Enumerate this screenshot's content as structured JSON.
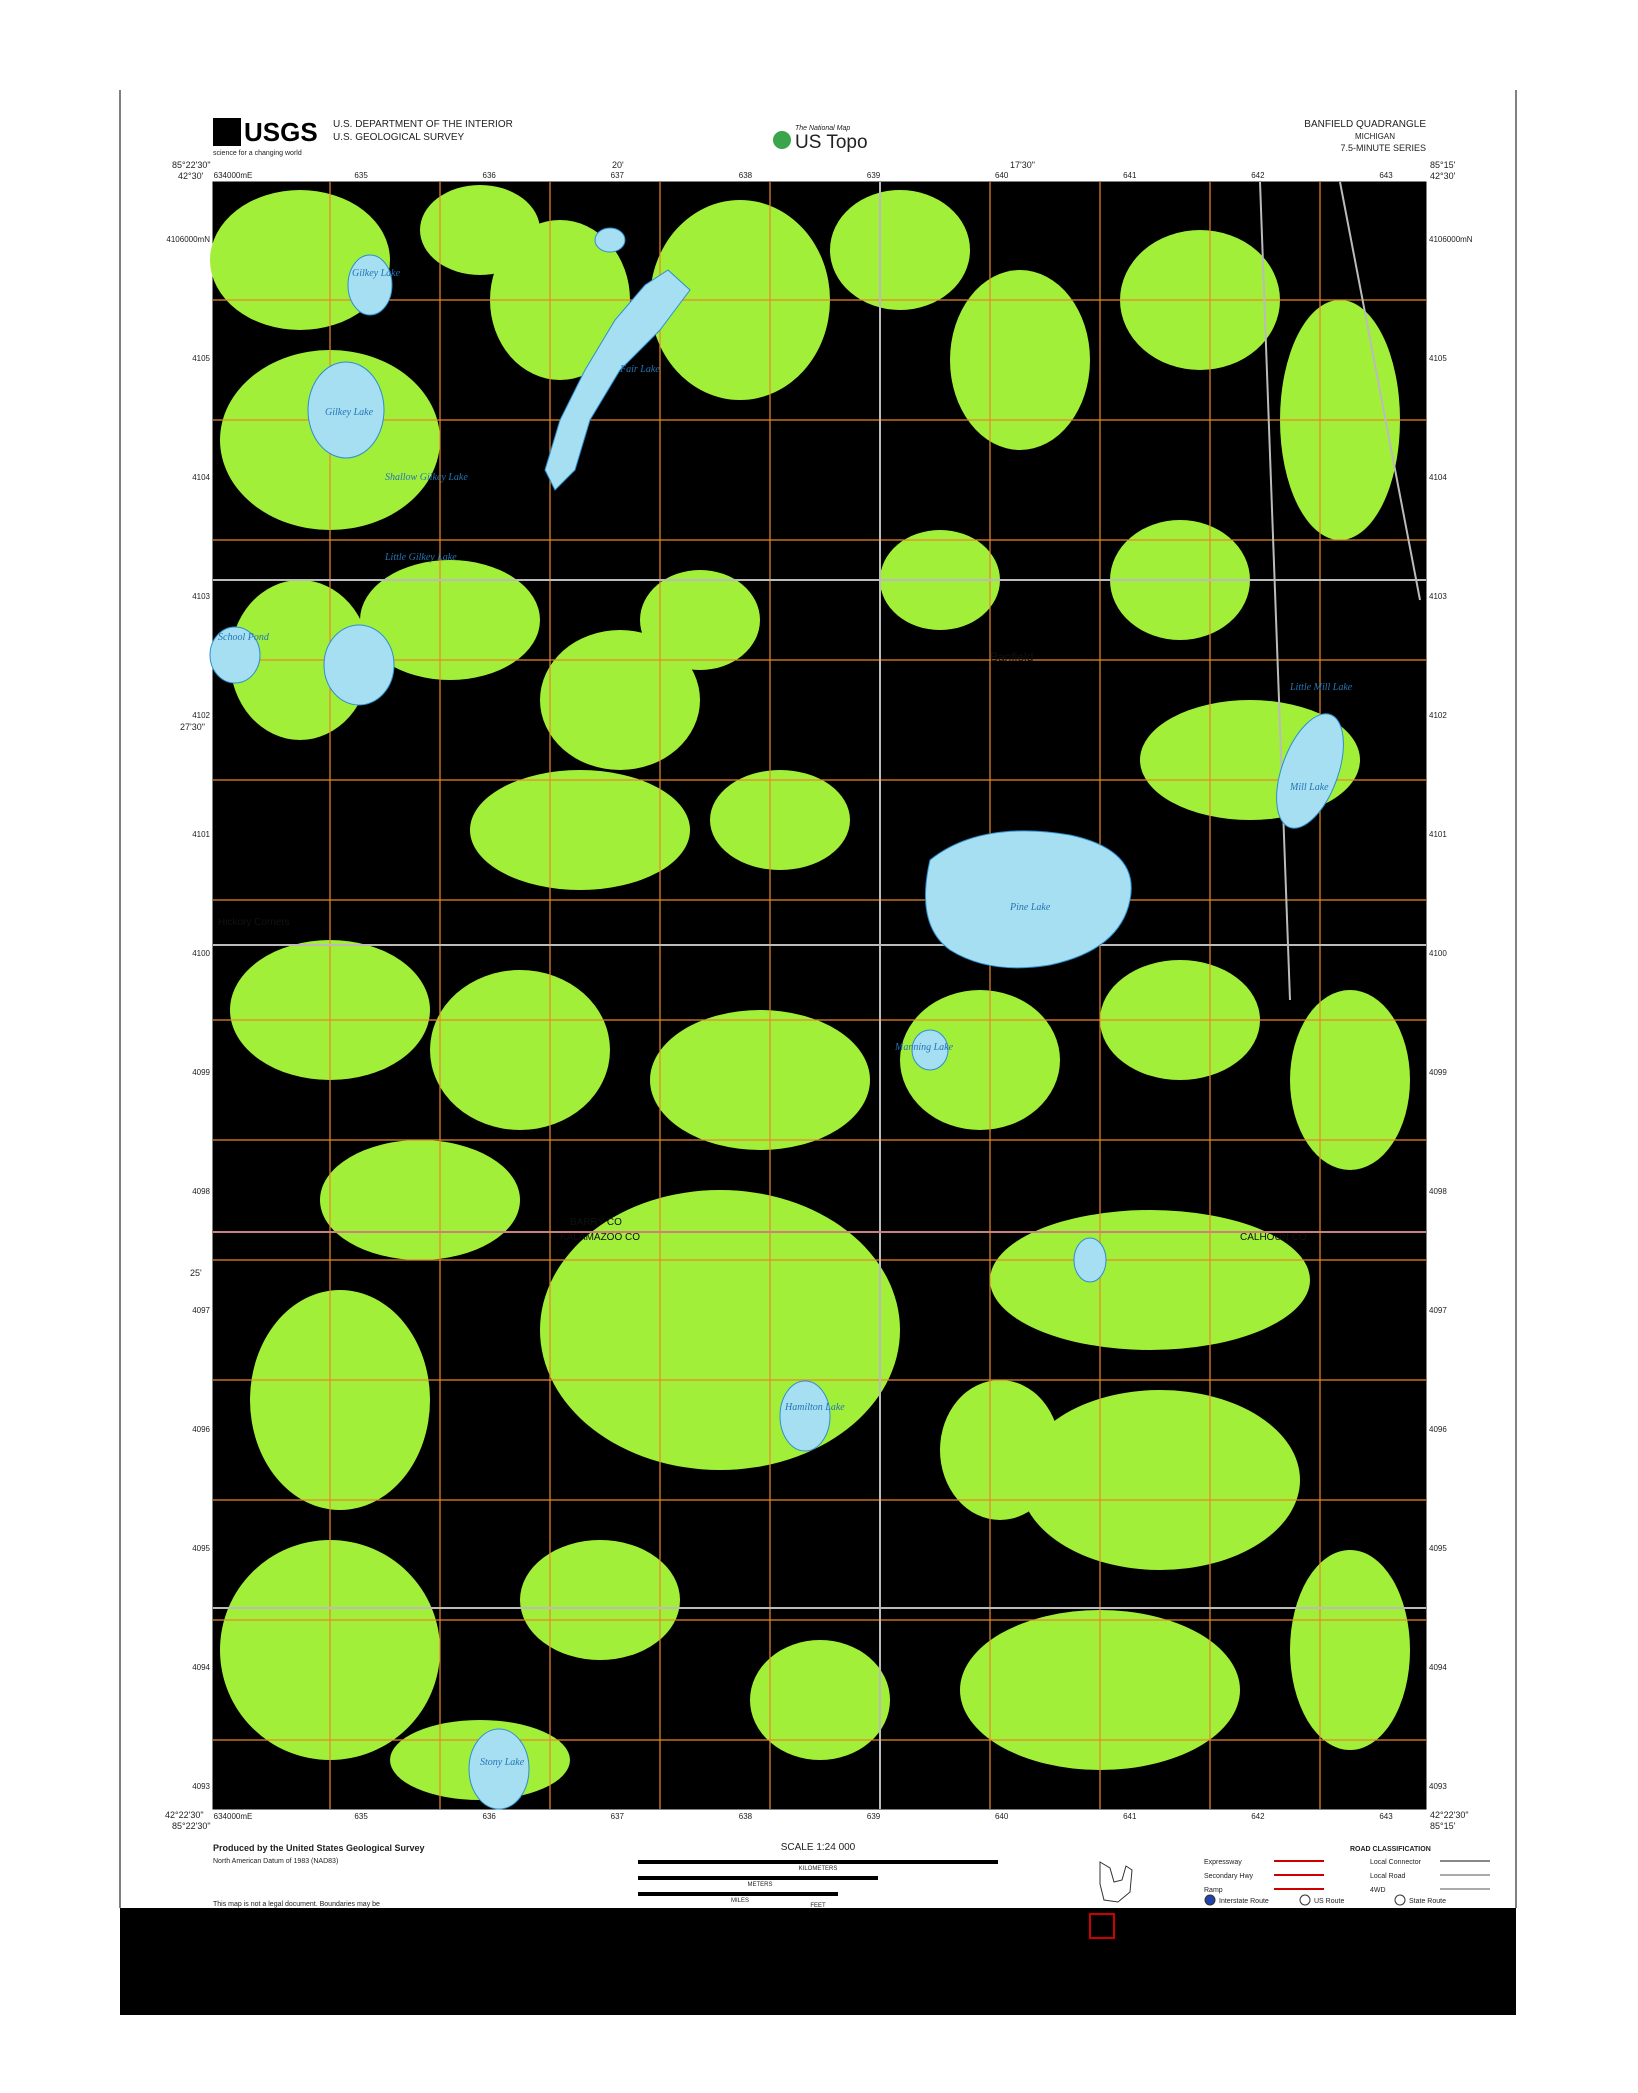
{
  "header": {
    "agency": "U.S. DEPARTMENT OF THE INTERIOR",
    "survey": "U.S. GEOLOGICAL SURVEY",
    "logo": "USGS",
    "tagline": "science for a changing world",
    "national_map": "The National Map",
    "product": "US Topo",
    "quadrangle": "BANFIELD QUADRANGLE",
    "state": "MICHIGAN",
    "series": "7.5-MINUTE SERIES"
  },
  "corners": {
    "nw_lon": "85°22'30\"",
    "nw_lat": "42°30'",
    "ne_lon": "85°15'",
    "ne_lat": "42°30'",
    "sw_lon": "85°22'30\"",
    "sw_lat": "42°22'30\"",
    "se_lon": "85°15'",
    "se_lat": "42°22'30\"",
    "mid_lon_1": "20'",
    "mid_lon_2": "17'30\"",
    "mid_lat_1": "27'30\"",
    "mid_lat_2": "25'"
  },
  "eastings": [
    "634000mE",
    "635",
    "636",
    "637",
    "638",
    "639",
    "640",
    "641",
    "642",
    "643"
  ],
  "northings": [
    "4106000mN",
    "4105",
    "4104",
    "4103",
    "4102",
    "4101",
    "4100",
    "4099",
    "4098",
    "4097",
    "4096",
    "4095",
    "4094",
    "4093"
  ],
  "places": [
    "Gilkey Lake",
    "Fair Lake",
    "Gilkey Lake",
    "Shallow Gilkey Lake",
    "Little Gilkey Lake",
    "School Pond",
    "Banfield",
    "Mill Lake",
    "Pine Lake",
    "Hickory Corners",
    "Manning Lake",
    "BARRY CO",
    "KALAMAZOO CO",
    "CALHOUN CO",
    "Hamilton Lake",
    "Stony Lake",
    "Little Mill Lake"
  ],
  "footer": {
    "producer": "Produced by the United States Geological Survey",
    "datum": "North American Datum of 1983 (NAD83)",
    "notice": "This map is not a legal document. Boundaries may be",
    "scale": "SCALE 1:24 000",
    "kilometers": "KILOMETERS",
    "meters": "METERS",
    "miles": "MILES",
    "feet": "FEET",
    "road_title": "ROAD CLASSIFICATION",
    "roads": [
      "Expressway",
      "Secondary Hwy",
      "Ramp",
      "Local Connector",
      "Local Road",
      "4WD"
    ],
    "routes": [
      "Interstate Route",
      "US Route",
      "State Route"
    ]
  }
}
